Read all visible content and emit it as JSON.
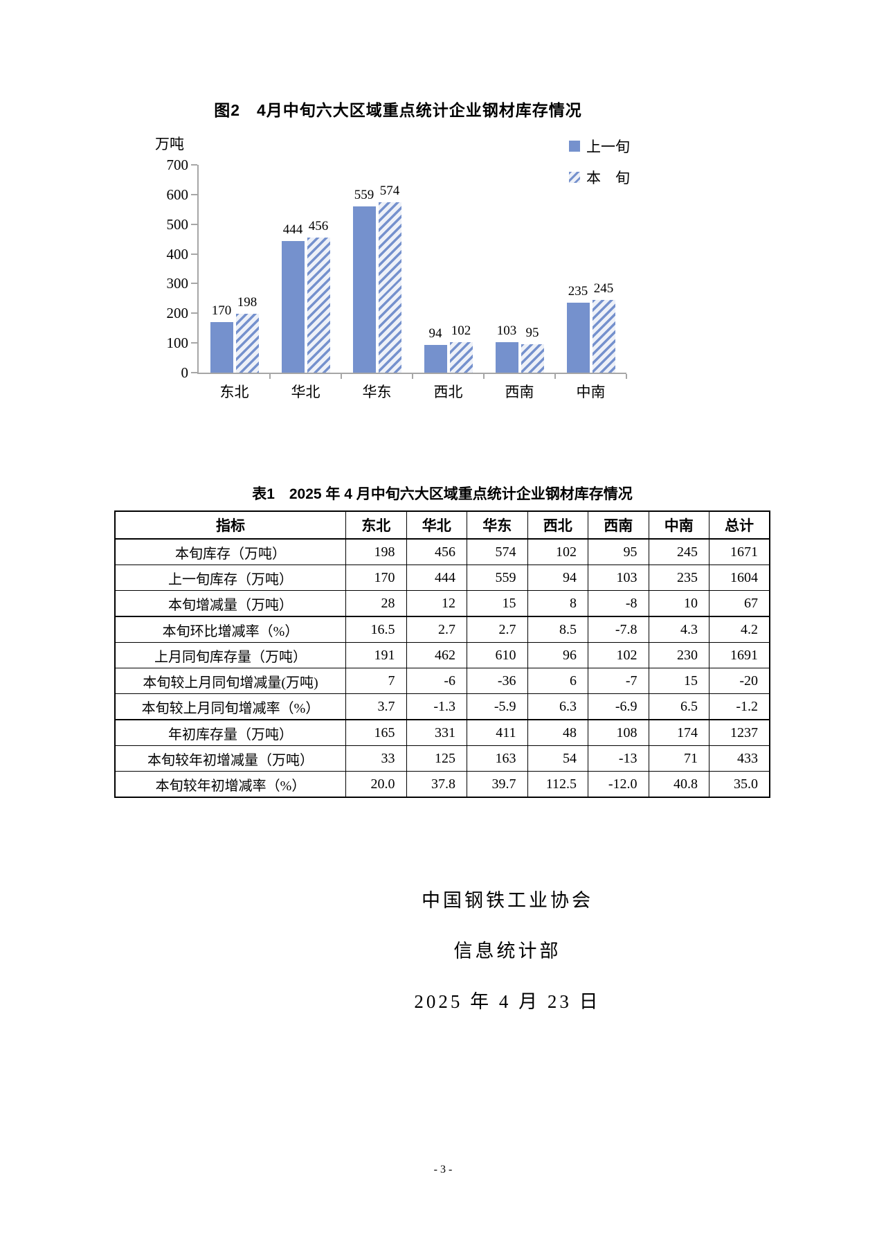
{
  "chart_data": {
    "type": "bar",
    "title": "图2　4月中旬六大区域重点统计企业钢材库存情况",
    "ylabel": "万吨",
    "xlabel": "",
    "categories": [
      "东北",
      "华北",
      "华东",
      "西北",
      "西南",
      "中南"
    ],
    "series": [
      {
        "name": "上一旬",
        "pattern": "solid",
        "values": [
          170,
          444,
          559,
          94,
          103,
          235
        ]
      },
      {
        "name": "本　旬",
        "pattern": "hatched",
        "values": [
          198,
          456,
          574,
          102,
          95,
          245
        ]
      }
    ],
    "ylim": [
      0,
      700
    ],
    "yticks": [
      0,
      100,
      200,
      300,
      400,
      500,
      600,
      700
    ],
    "legend_position": "top-right",
    "grid": false
  },
  "colors": {
    "bar_blue": "#7591cd",
    "axis_gray": "#a6a6a6",
    "hatch_background": "#eef1f8"
  },
  "table": {
    "title": "表1　2025 年 4 月中旬六大区域重点统计企业钢材库存情况",
    "columns": [
      "指标",
      "东北",
      "华北",
      "华东",
      "西北",
      "西南",
      "中南",
      "总计"
    ],
    "rows": [
      {
        "label": "本旬库存（万吨）",
        "values": [
          "198",
          "456",
          "574",
          "102",
          "95",
          "245",
          "1671"
        ]
      },
      {
        "label": "上一旬库存（万吨）",
        "values": [
          "170",
          "444",
          "559",
          "94",
          "103",
          "235",
          "1604"
        ]
      },
      {
        "label": "本旬增减量（万吨）",
        "values": [
          "28",
          "12",
          "15",
          "8",
          "-8",
          "10",
          "67"
        ]
      },
      {
        "label": "本旬环比增减率（%）",
        "values": [
          "16.5",
          "2.7",
          "2.7",
          "8.5",
          "-7.8",
          "4.3",
          "4.2"
        ]
      },
      {
        "label": "上月同旬库存量（万吨）",
        "values": [
          "191",
          "462",
          "610",
          "96",
          "102",
          "230",
          "1691"
        ]
      },
      {
        "label": "本旬较上月同旬增减量(万吨)",
        "values": [
          "7",
          "-6",
          "-36",
          "6",
          "-7",
          "15",
          "-20"
        ]
      },
      {
        "label": "本旬较上月同旬增减率（%）",
        "values": [
          "3.7",
          "-1.3",
          "-5.9",
          "6.3",
          "-6.9",
          "6.5",
          "-1.2"
        ]
      },
      {
        "label": "年初库存量（万吨）",
        "values": [
          "165",
          "331",
          "411",
          "48",
          "108",
          "174",
          "1237"
        ]
      },
      {
        "label": "本旬较年初增减量（万吨）",
        "values": [
          "33",
          "125",
          "163",
          "54",
          "-13",
          "71",
          "433"
        ]
      },
      {
        "label": "本旬较年初增减率（%）",
        "values": [
          "20.0",
          "37.8",
          "39.7",
          "112.5",
          "-12.0",
          "40.8",
          "35.0"
        ]
      }
    ]
  },
  "footer": {
    "org": "中国钢铁工业协会",
    "dept": "信息统计部",
    "date": "2025 年 4 月 23 日",
    "page_number": "- 3 -"
  }
}
